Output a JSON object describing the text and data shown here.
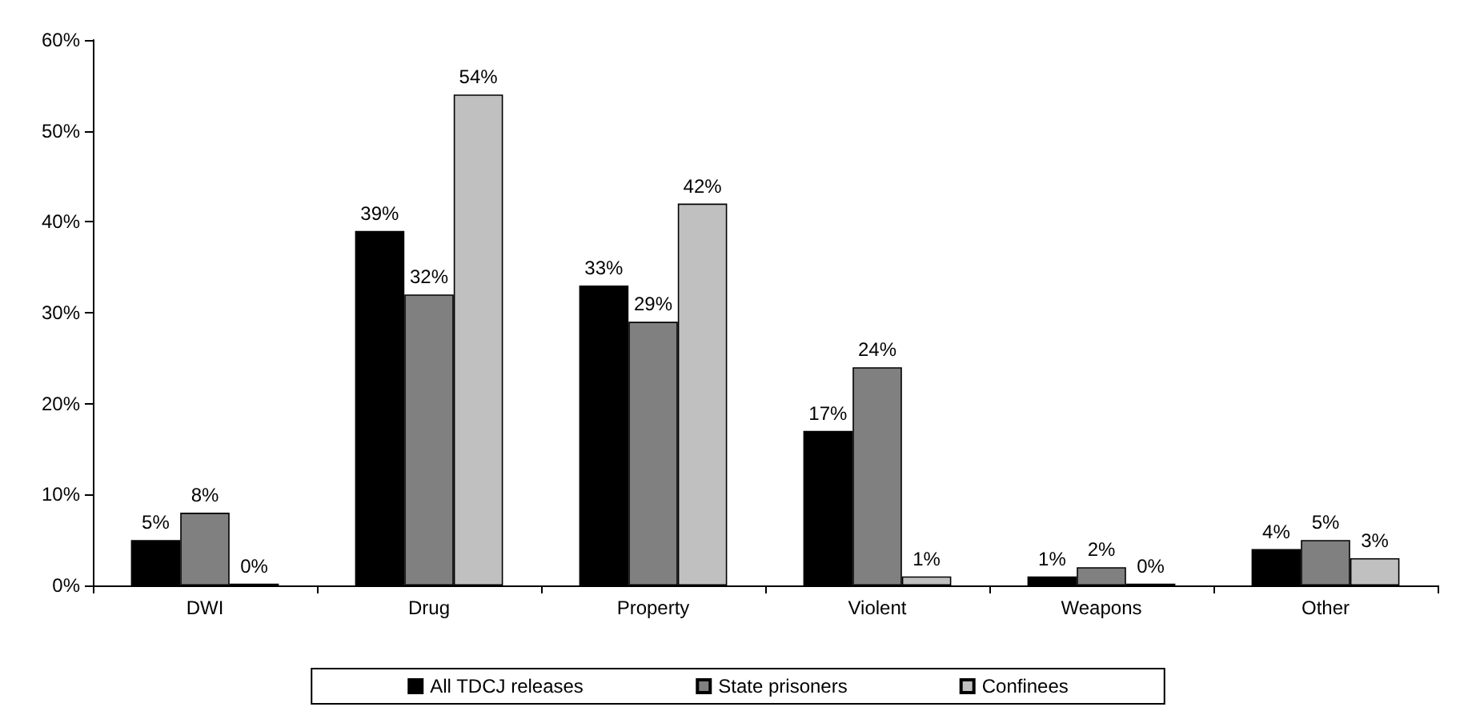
{
  "chart_data": {
    "type": "bar",
    "categories": [
      "DWI",
      "Drug",
      "Property",
      "Violent",
      "Weapons",
      "Other"
    ],
    "series": [
      {
        "name": "All TDCJ releases",
        "color": "#000000",
        "values": [
          5,
          39,
          33,
          17,
          1,
          4
        ],
        "value_labels": [
          "5%",
          "39%",
          "33%",
          "17%",
          "1%",
          "4%"
        ]
      },
      {
        "name": "State prisoners",
        "color": "#808080",
        "values": [
          8,
          32,
          29,
          24,
          2,
          5
        ],
        "value_labels": [
          "8%",
          "32%",
          "29%",
          "24%",
          "2%",
          "5%"
        ]
      },
      {
        "name": "Confinees",
        "color": "#c0c0c0",
        "values": [
          0.2,
          54,
          42,
          1,
          0.2,
          3
        ],
        "value_labels": [
          "0%",
          "54%",
          "42%",
          "1%",
          "0%",
          "3%"
        ]
      }
    ],
    "ylim": [
      0,
      60
    ],
    "yticks": [
      {
        "value": 0,
        "label": "0%"
      },
      {
        "value": 10,
        "label": "10%"
      },
      {
        "value": 20,
        "label": "20%"
      },
      {
        "value": 30,
        "label": "30%"
      },
      {
        "value": 40,
        "label": "40%"
      },
      {
        "value": 50,
        "label": "50%"
      },
      {
        "value": 60,
        "label": "60%"
      }
    ],
    "grid": false,
    "legend": "bottom"
  }
}
